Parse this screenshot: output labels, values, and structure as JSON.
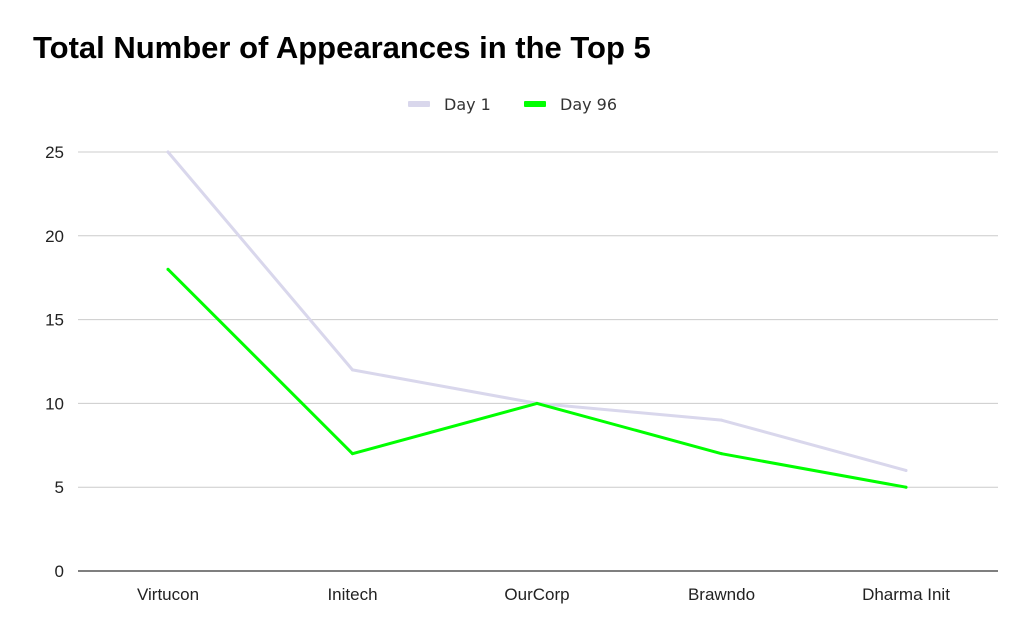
{
  "chart_data": {
    "type": "line",
    "title": "Total Number of Appearances in the Top 5",
    "xlabel": "",
    "ylabel": "",
    "categories": [
      "Virtucon",
      "Initech",
      "OurCorp",
      "Brawndo",
      "Dharma Init"
    ],
    "series": [
      {
        "name": "Day 1",
        "color": "#d9d7ec",
        "values": [
          25,
          12,
          10,
          9,
          6
        ]
      },
      {
        "name": "Day 96",
        "color": "#00ff00",
        "values": [
          18,
          7,
          10,
          7,
          5
        ]
      }
    ],
    "ylim": [
      0,
      25
    ],
    "yticks": [
      0,
      5,
      10,
      15,
      20,
      25
    ],
    "grid": true,
    "legend_position": "top-center"
  }
}
